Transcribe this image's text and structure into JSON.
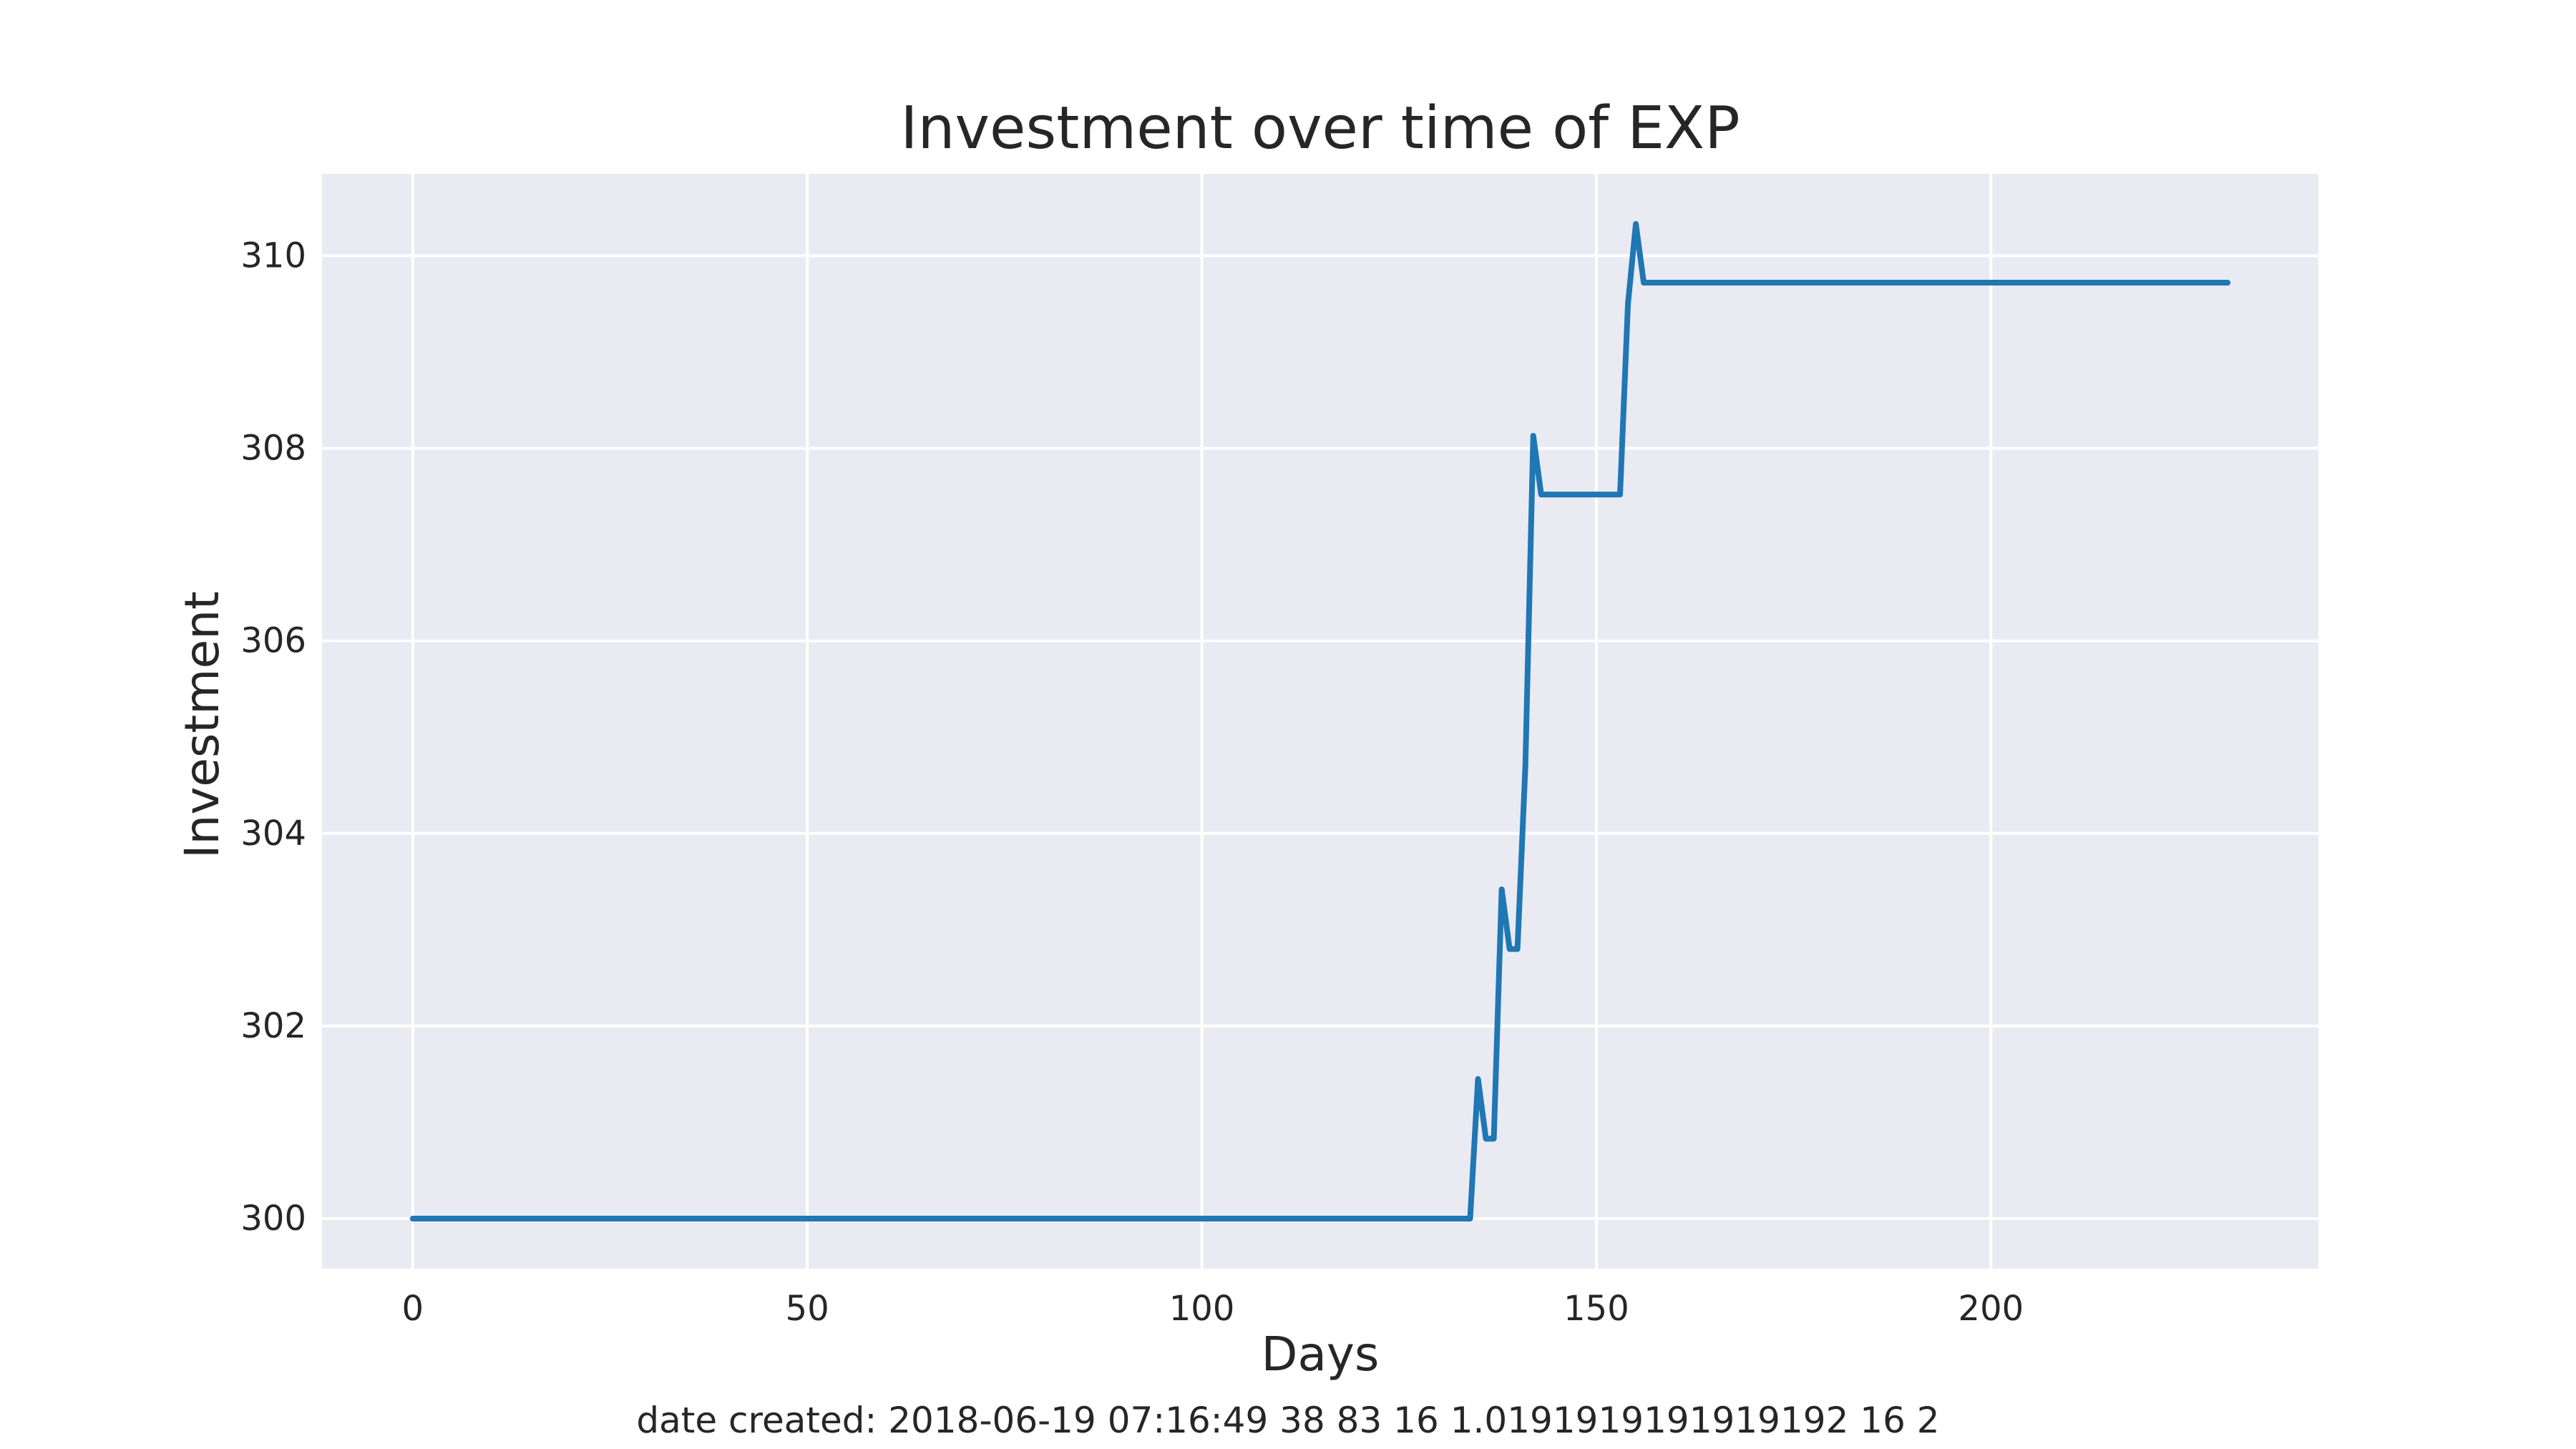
{
  "chart_data": {
    "type": "line",
    "title": "Investment over time of EXP",
    "xlabel": "Days",
    "ylabel": "Investment",
    "xlim": [
      -11.5,
      241.5
    ],
    "ylim": [
      299.48,
      310.85
    ],
    "xticks": [
      0,
      50,
      100,
      150,
      200
    ],
    "yticks": [
      300,
      302,
      304,
      306,
      308,
      310
    ],
    "grid": true,
    "legend": "none",
    "series": [
      {
        "color": "#1f77b4",
        "x": [
          0,
          134,
          135,
          136,
          137,
          138,
          139,
          140,
          141,
          142,
          143,
          153,
          154,
          155,
          156,
          230
        ],
        "y": [
          300.0,
          300.0,
          301.45,
          300.83,
          300.83,
          303.42,
          302.8,
          302.8,
          304.7,
          308.13,
          307.52,
          307.52,
          309.5,
          310.33,
          309.72,
          309.72
        ]
      }
    ]
  },
  "footnote": "date created: 2018-06-19 07:16:49 38 83 16 1.0191919191919192 16 2",
  "colors": {
    "plot_background": "#eaeaf2",
    "grid": "#ffffff",
    "line": "#1f77b4",
    "text": "#262626"
  }
}
